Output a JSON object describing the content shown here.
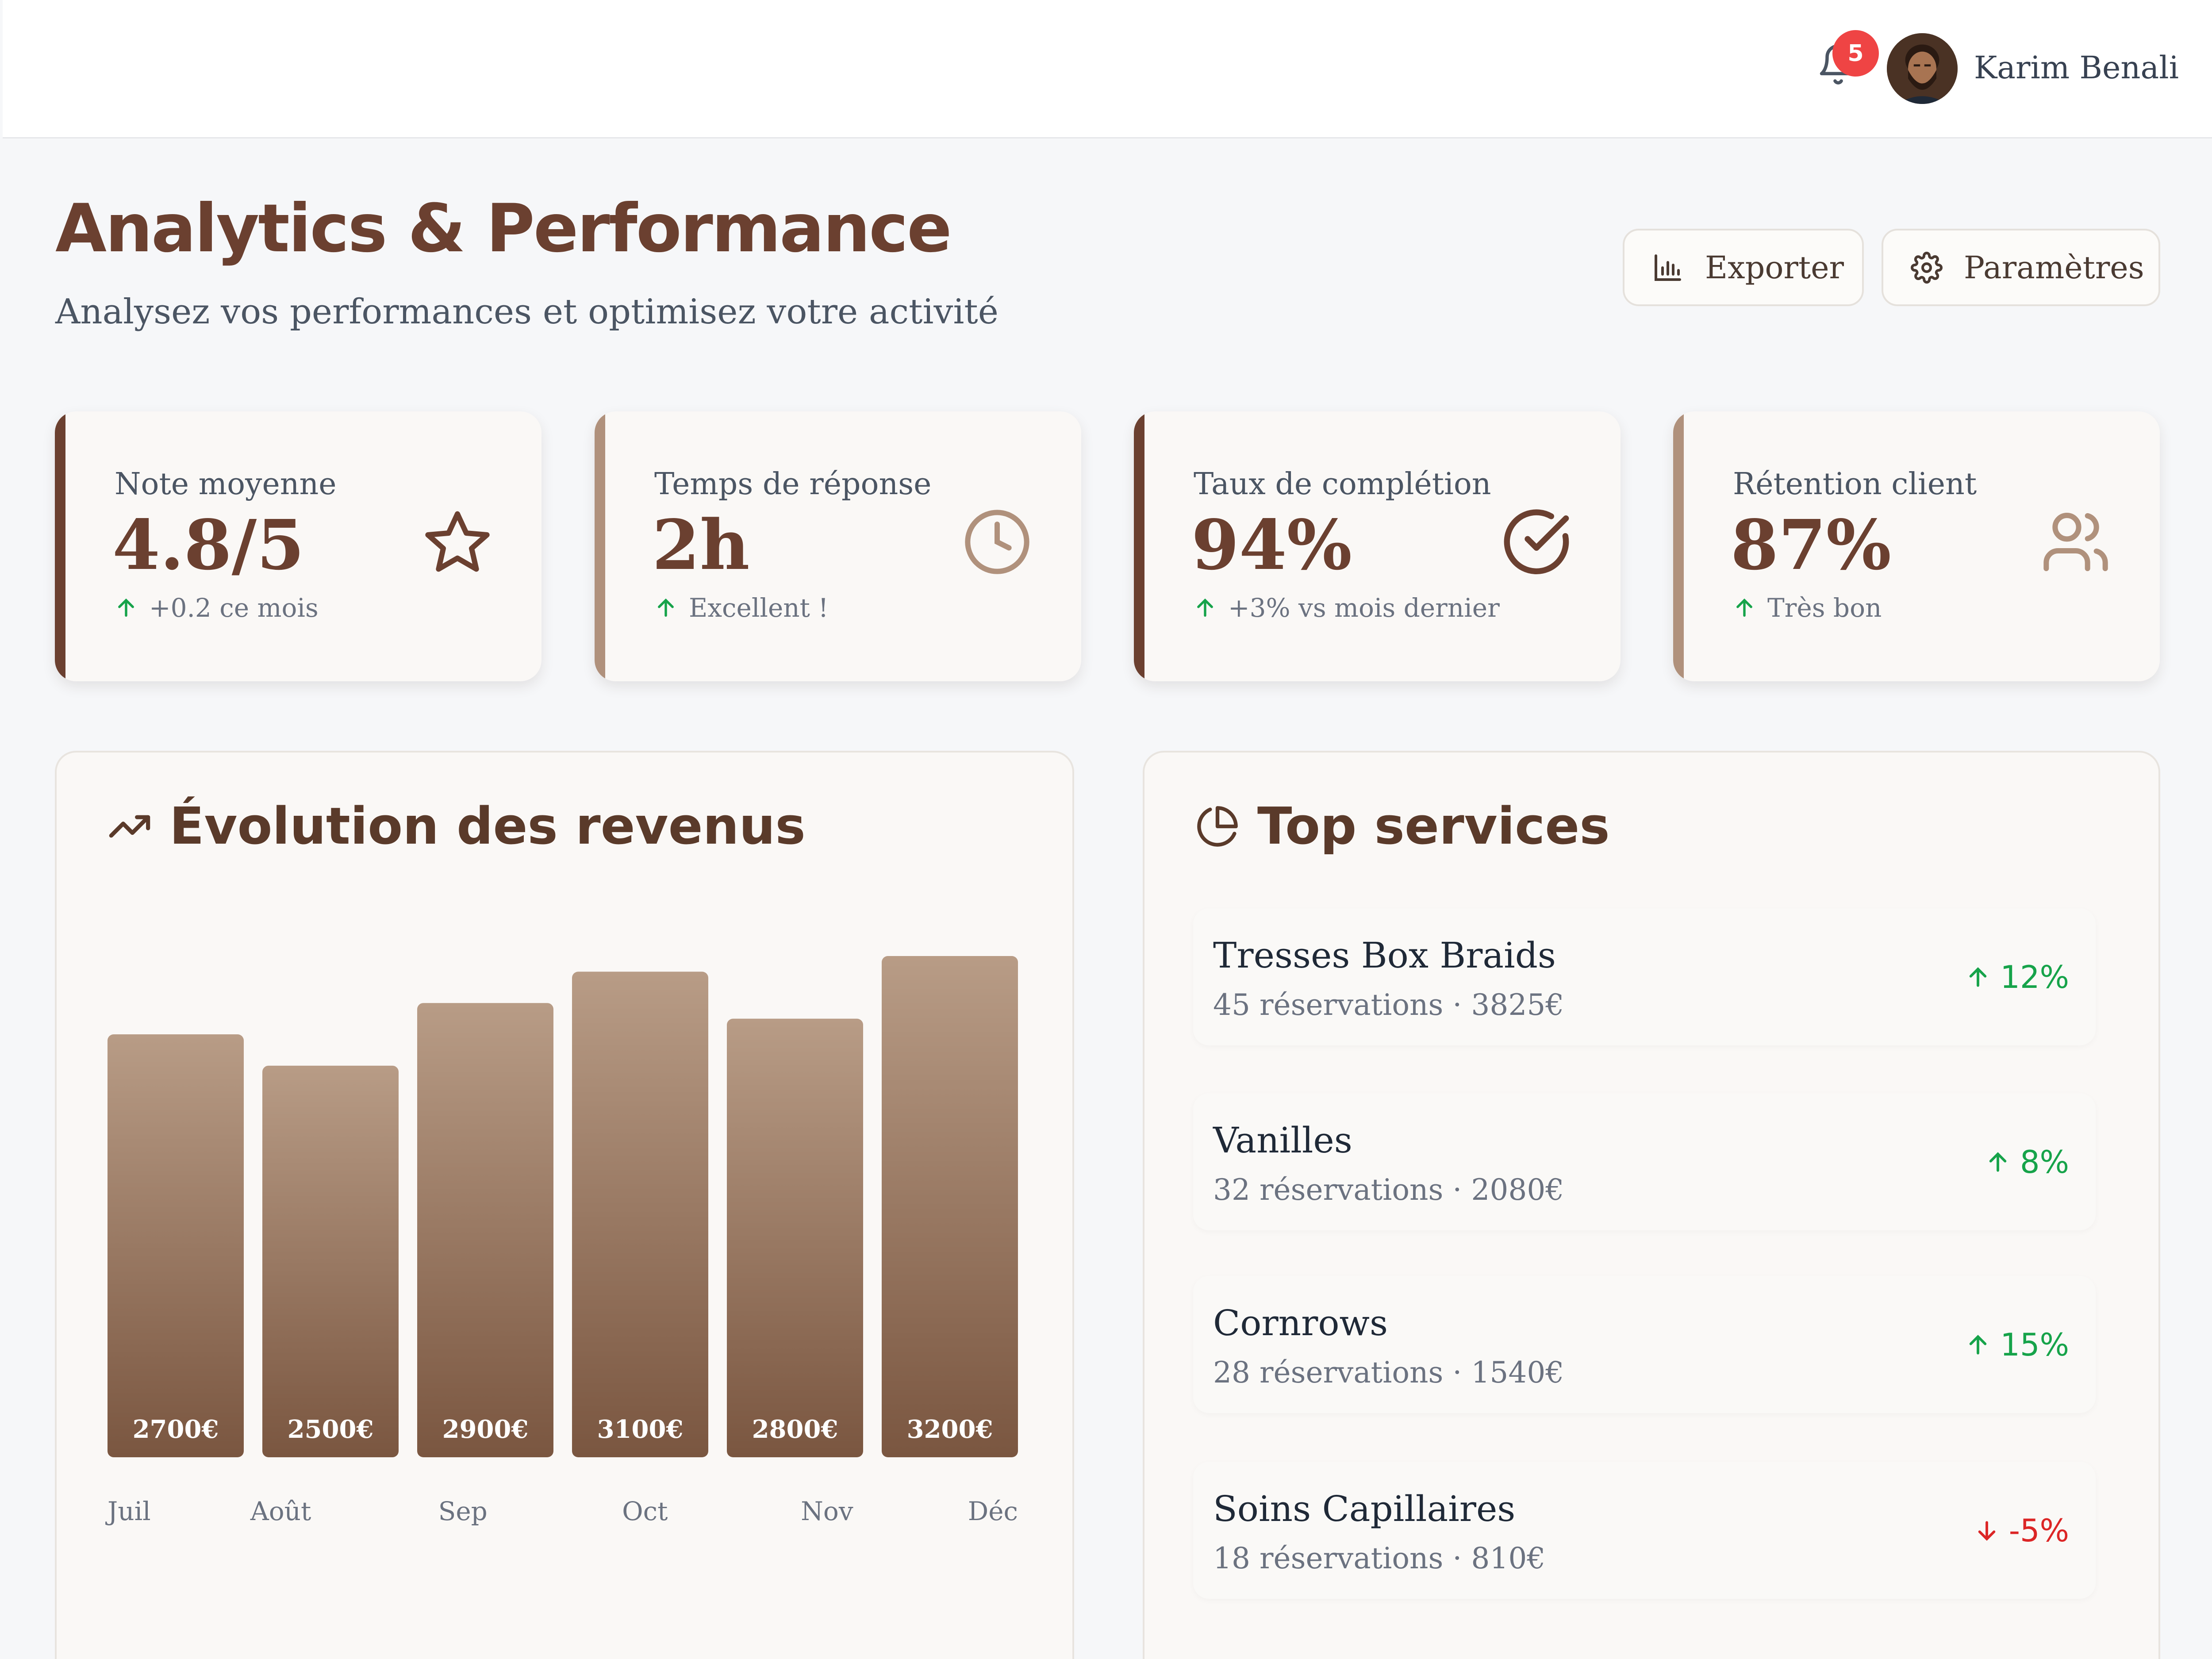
{
  "header": {
    "notifications_count": "5",
    "user_name": "Karim Benali"
  },
  "page": {
    "title": "Analytics & Performance",
    "subtitle": "Analysez vos performances et optimisez votre activité"
  },
  "toolbar": {
    "export_label": "Exporter",
    "settings_label": "Paramètres"
  },
  "kpis": [
    {
      "label": "Note moyenne",
      "value": "4.8/5",
      "trend": "+0.2 ce mois",
      "icon": "star-icon",
      "accent": "#6b4030"
    },
    {
      "label": "Temps de réponse",
      "value": "2h",
      "trend": "Excellent !",
      "icon": "clock-icon",
      "accent": "#b0917c"
    },
    {
      "label": "Taux de complétion",
      "value": "94%",
      "trend": "+3% vs mois dernier",
      "icon": "check-circle-icon",
      "accent": "#6b4030"
    },
    {
      "label": "Rétention client",
      "value": "87%",
      "trend": "Très bon",
      "icon": "users-icon",
      "accent": "#b0917c"
    }
  ],
  "revenue": {
    "title": "Évolution des revenus"
  },
  "chart_data": {
    "type": "bar",
    "categories": [
      "Juil",
      "Août",
      "Sep",
      "Oct",
      "Nov",
      "Déc"
    ],
    "values": [
      2700,
      2500,
      2900,
      3100,
      2800,
      3200
    ],
    "value_labels": [
      "2700€",
      "2500€",
      "2900€",
      "3100€",
      "2800€",
      "3200€"
    ],
    "ylim": [
      0,
      3200
    ],
    "bar_color_top": "#b89c86",
    "bar_color_bottom": "#7a5640"
  },
  "top_services": {
    "title": "Top services",
    "items": [
      {
        "name": "Tresses Box Braids",
        "meta": "45 réservations · 3825€",
        "trend": "12%",
        "direction": "up"
      },
      {
        "name": "Vanilles",
        "meta": "32 réservations · 2080€",
        "trend": "8%",
        "direction": "up"
      },
      {
        "name": "Cornrows",
        "meta": "28 réservations · 1540€",
        "trend": "15%",
        "direction": "up"
      },
      {
        "name": "Soins Capillaires",
        "meta": "18 réservations · 810€",
        "trend": "-5%",
        "direction": "down"
      }
    ]
  },
  "colors": {
    "brand": "#6b4030",
    "positive": "#16a34a",
    "negative": "#dc2626",
    "badge": "#ef4444"
  }
}
